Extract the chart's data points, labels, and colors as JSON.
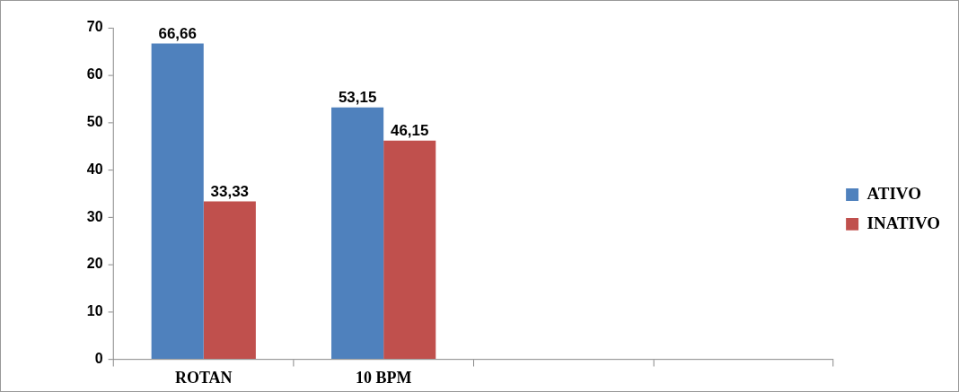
{
  "chart_data": {
    "type": "bar",
    "categories": [
      "ROTAN",
      "10 BPM",
      null,
      null
    ],
    "series": [
      {
        "name": "ATIVO",
        "color": "#4f81bd",
        "values": [
          66.66,
          53.15,
          null,
          null
        ],
        "value_labels": [
          "66,66",
          "53,15",
          null,
          null
        ]
      },
      {
        "name": "INATIVO",
        "color": "#c0504d",
        "values": [
          33.33,
          46.15,
          null,
          null
        ],
        "value_labels": [
          "33,33",
          "46,15",
          null,
          null
        ]
      }
    ],
    "ylim": [
      0,
      70
    ],
    "yticks": [
      0,
      10,
      20,
      30,
      40,
      50,
      60,
      70
    ],
    "grid": false,
    "legend": "right"
  }
}
